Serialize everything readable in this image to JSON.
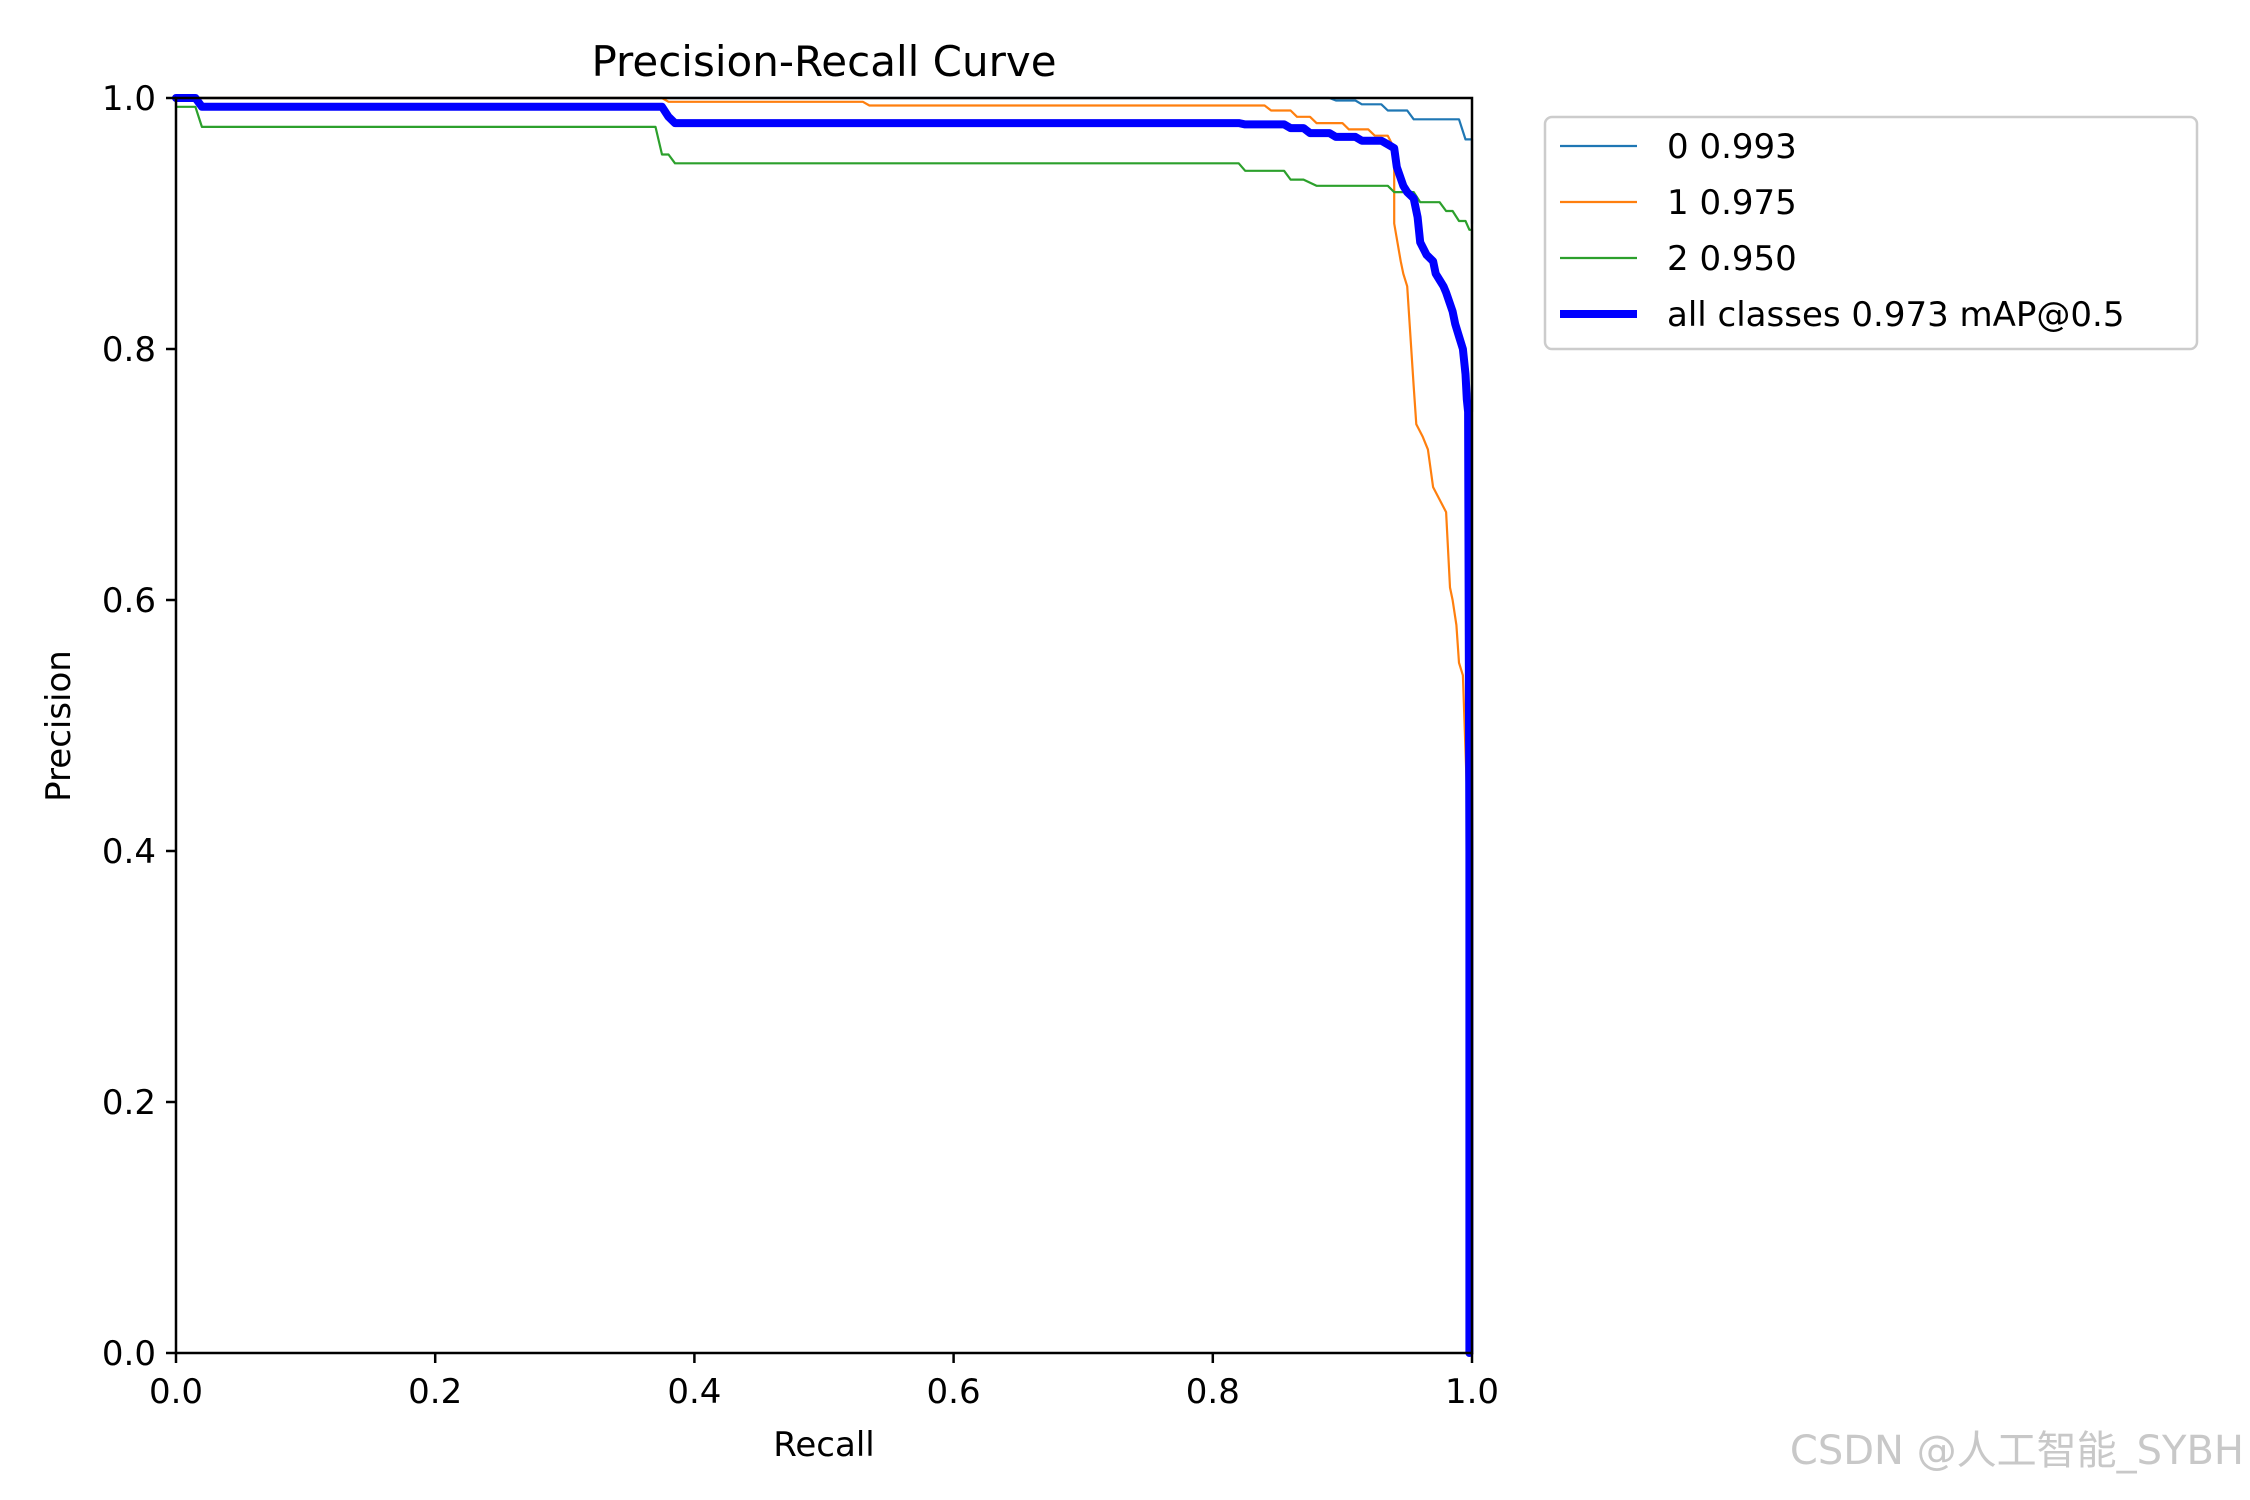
{
  "chart_data": {
    "type": "line",
    "title": "Precision-Recall Curve",
    "xlabel": "Recall",
    "ylabel": "Precision",
    "xlim": [
      0,
      1
    ],
    "ylim": [
      0,
      1
    ],
    "xticks": [
      "0.0",
      "0.2",
      "0.4",
      "0.6",
      "0.8",
      "1.0"
    ],
    "yticks": [
      "0.0",
      "0.2",
      "0.4",
      "0.6",
      "0.8",
      "1.0"
    ],
    "grid": false,
    "legend_position": "outside upper right",
    "series": [
      {
        "name": "0 0.993",
        "color": "#1f77b4",
        "line_width": "thin",
        "x": [
          0.0,
          0.375,
          0.38,
          0.89,
          0.895,
          0.91,
          0.915,
          0.93,
          0.935,
          0.95,
          0.955,
          0.99,
          0.995,
          1.0,
          1.0
        ],
        "y": [
          1.0,
          1.0,
          1.0,
          1.0,
          0.998,
          0.998,
          0.995,
          0.995,
          0.99,
          0.99,
          0.983,
          0.983,
          0.967,
          0.967,
          0.9
        ]
      },
      {
        "name": "1 0.975",
        "color": "#ff7f0e",
        "line_width": "thin",
        "x": [
          0.0,
          0.375,
          0.38,
          0.53,
          0.535,
          0.84,
          0.845,
          0.86,
          0.865,
          0.875,
          0.88,
          0.9,
          0.905,
          0.92,
          0.925,
          0.935,
          0.94,
          0.94,
          0.945,
          0.947,
          0.95,
          0.955,
          0.957,
          0.962,
          0.966,
          0.97,
          0.975,
          0.98,
          0.983,
          0.985,
          0.988,
          0.99,
          0.993,
          0.996,
          0.996
        ],
        "y": [
          1.0,
          1.0,
          0.997,
          0.997,
          0.994,
          0.994,
          0.99,
          0.99,
          0.985,
          0.985,
          0.98,
          0.98,
          0.975,
          0.975,
          0.97,
          0.97,
          0.96,
          0.9,
          0.87,
          0.86,
          0.85,
          0.77,
          0.74,
          0.73,
          0.72,
          0.69,
          0.68,
          0.67,
          0.61,
          0.6,
          0.58,
          0.55,
          0.54,
          0.45,
          0.44
        ]
      },
      {
        "name": "2 0.950",
        "color": "#2ca02c",
        "line_width": "thin",
        "x": [
          0.0,
          0.015,
          0.02,
          0.37,
          0.375,
          0.38,
          0.385,
          0.82,
          0.825,
          0.855,
          0.86,
          0.87,
          0.88,
          0.935,
          0.94,
          0.955,
          0.96,
          0.975,
          0.98,
          0.985,
          0.99,
          0.995,
          0.998,
          1.0,
          1.0
        ],
        "y": [
          0.993,
          0.993,
          0.977,
          0.977,
          0.955,
          0.955,
          0.948,
          0.948,
          0.942,
          0.942,
          0.935,
          0.935,
          0.93,
          0.93,
          0.925,
          0.925,
          0.917,
          0.917,
          0.91,
          0.91,
          0.902,
          0.902,
          0.895,
          0.895,
          0.75
        ]
      },
      {
        "name": "all classes 0.973 mAP@0.5",
        "color": "#0000ff",
        "line_width": "thick",
        "x": [
          0.0,
          0.015,
          0.02,
          0.375,
          0.38,
          0.385,
          0.82,
          0.825,
          0.855,
          0.86,
          0.87,
          0.875,
          0.89,
          0.895,
          0.91,
          0.915,
          0.93,
          0.935,
          0.94,
          0.942,
          0.947,
          0.95,
          0.955,
          0.958,
          0.96,
          0.965,
          0.97,
          0.972,
          0.975,
          0.978,
          0.98,
          0.985,
          0.987,
          0.99,
          0.993,
          0.995,
          0.996,
          0.997,
          0.998,
          0.998
        ],
        "y": [
          1.0,
          1.0,
          0.993,
          0.993,
          0.985,
          0.98,
          0.98,
          0.979,
          0.979,
          0.976,
          0.976,
          0.972,
          0.972,
          0.969,
          0.969,
          0.966,
          0.966,
          0.963,
          0.96,
          0.945,
          0.93,
          0.925,
          0.92,
          0.905,
          0.885,
          0.875,
          0.87,
          0.86,
          0.855,
          0.85,
          0.845,
          0.83,
          0.82,
          0.81,
          0.8,
          0.78,
          0.76,
          0.75,
          0.4,
          0.0
        ]
      }
    ]
  },
  "watermark": "CSDN @人工智能_SYBH"
}
